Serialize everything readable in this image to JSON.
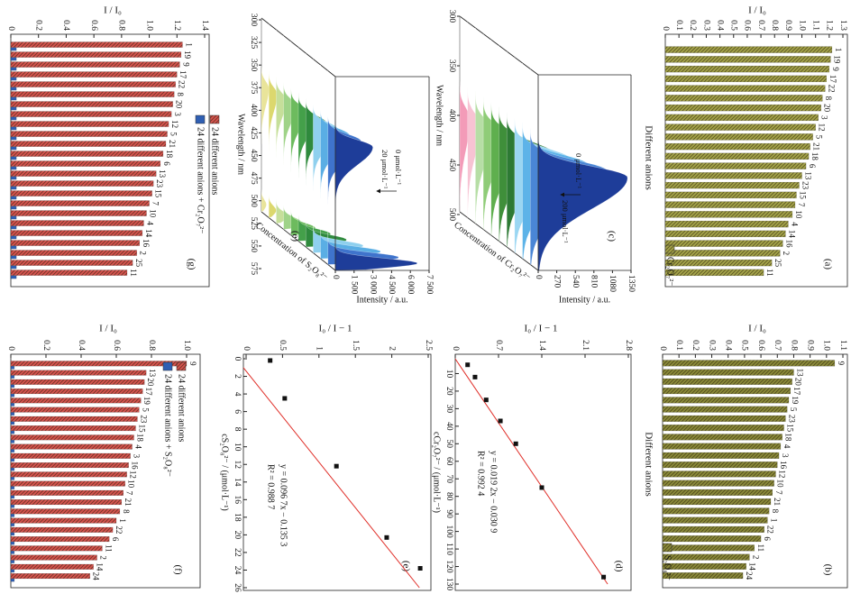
{
  "chart_data": [
    {
      "type": "bar",
      "label": "(a)",
      "ylabel": "I / I₀",
      "xlabel": "Different anions",
      "categories": [
        "1",
        "19",
        "9",
        "17",
        "22",
        "8",
        "20",
        "3",
        "12",
        "5",
        "21",
        "18",
        "6",
        "13",
        "23",
        "15",
        "7",
        "10",
        "4",
        "14",
        "16",
        "2",
        "25",
        "11"
      ],
      "series": [
        {
          "name": "Cr₂O₇²⁻",
          "color": "#a6a64a",
          "hatch": true,
          "values": [
            1.22,
            1.21,
            1.2,
            1.18,
            1.17,
            1.15,
            1.14,
            1.12,
            1.1,
            1.08,
            1.06,
            1.05,
            1.03,
            1.0,
            0.98,
            0.96,
            0.95,
            0.93,
            0.9,
            0.88,
            0.86,
            0.84,
            0.78,
            0.72
          ]
        }
      ],
      "ylim": [
        0,
        1.3
      ],
      "yticks": [
        0,
        0.1,
        0.2,
        0.3,
        0.4,
        0.5,
        0.6,
        0.7,
        0.8,
        0.9,
        {
          "value": 1,
          "label": "1.0"
        },
        1.1,
        1.2,
        1.3
      ]
    },
    {
      "type": "bar",
      "label": "(b)",
      "ylabel": "I / I₀",
      "xlabel": "Different anions",
      "categories": [
        "9",
        "13",
        "20",
        "17",
        "19",
        "5",
        "23",
        "15",
        "18",
        "4",
        "3",
        "16",
        "12",
        "10",
        "7",
        "21",
        "8",
        "1",
        "22",
        "6",
        "11",
        "2",
        "14",
        "24"
      ],
      "series": [
        {
          "name": "S₂O₈²⁻",
          "color": "#8c8c3a",
          "hatch": true,
          "values": [
            1.05,
            0.8,
            0.79,
            0.78,
            0.77,
            0.76,
            0.75,
            0.74,
            0.73,
            0.72,
            0.71,
            0.7,
            0.69,
            0.68,
            0.67,
            0.66,
            0.65,
            0.64,
            0.62,
            0.6,
            0.56,
            0.53,
            0.51,
            0.49
          ]
        }
      ],
      "ylim": [
        0,
        1.1
      ],
      "yticks": [
        0,
        0.1,
        0.2,
        0.3,
        0.4,
        0.5,
        0.6,
        0.7,
        0.8,
        0.9,
        {
          "value": 1,
          "label": "1.0"
        },
        1.1
      ]
    },
    {
      "type": "waterfall",
      "label": "(c)",
      "ylabel": "Wavelength / nm",
      "xlabel": "Intensity / a.u.",
      "zlabel": "Concentration of Cr₂O₇²⁻",
      "annotations": [
        "0 μmol·L⁻¹",
        "200 μmol·L⁻¹"
      ],
      "ylim": [
        300,
        500
      ],
      "yticks": [
        300,
        350,
        400,
        450,
        500
      ],
      "xlim": [
        0,
        1350
      ],
      "xticks": [
        0,
        270,
        540,
        810,
        1080,
        1350
      ]
    },
    {
      "type": "scatter",
      "label": "(d)",
      "ylabel": "I₀ / I − 1",
      "xlabel": "cCr₂O₇²⁻ / (μmol·L⁻¹)",
      "equation": "y = 0.019 2x − 0.030 9",
      "r2": "R² = 0.992 4",
      "x": [
        5,
        12,
        25,
        37,
        50,
        75,
        126
      ],
      "values": [
        0.2,
        0.32,
        0.5,
        0.73,
        0.98,
        1.4,
        2.4
      ],
      "color": "#111111",
      "line_color": "#e0302a",
      "xlim": [
        0,
        130
      ],
      "xticks": [
        10,
        20,
        30,
        40,
        50,
        60,
        70,
        80,
        90,
        100,
        110,
        120,
        130
      ],
      "ylim": [
        0,
        2.8
      ],
      "yticks": [
        0,
        0.7,
        1.4,
        2.1,
        2.8
      ]
    },
    {
      "type": "waterfall",
      "label": "(e)",
      "ylabel": "Wavelength / nm",
      "xlabel": "Intensity / a.u.",
      "zlabel": "Concentration of S₂O₈²⁻",
      "annotations": [
        "0 μmol·L⁻¹",
        "20 μmol·L⁻¹"
      ],
      "ylim": [
        300,
        575
      ],
      "yticks": [
        300,
        325,
        350,
        375,
        400,
        425,
        450,
        475,
        500,
        525,
        550,
        575
      ],
      "xlim": [
        0,
        7500
      ],
      "xticks": [
        0,
        {
          "value": 1500,
          "label": "1 500"
        },
        {
          "value": 3000,
          "label": "3 000"
        },
        {
          "value": 4500,
          "label": "4 500"
        },
        {
          "value": 6000,
          "label": "6 000"
        },
        {
          "value": 7500,
          "label": "7 500"
        }
      ]
    },
    {
      "type": "scatter",
      "label": "(e)",
      "ylabel": "I₀ / I − 1",
      "xlabel": "cS₂O₈²⁻ / (μmol·L⁻¹)",
      "equation": "y = 0.096 7x − 0.135 3",
      "r2": "R² = 0.988 7",
      "x": [
        0.2,
        4.5,
        12.2,
        20.3,
        23.8
      ],
      "values": [
        0.33,
        0.53,
        1.24,
        1.93,
        2.39
      ],
      "color": "#111111",
      "line_color": "#e0302a",
      "xlim": [
        0,
        26
      ],
      "xticks": [
        0,
        2,
        4,
        6,
        8,
        10,
        12,
        14,
        16,
        18,
        20,
        22,
        24,
        26
      ],
      "ylim": [
        0,
        2.5
      ],
      "yticks": [
        0,
        0.5,
        1,
        1.5,
        2,
        2.5
      ]
    },
    {
      "type": "bar",
      "label": "(f)",
      "ylabel": "I / I₀",
      "categories": [
        "9",
        "13",
        "20",
        "17",
        "19",
        "5",
        "23",
        "15",
        "18",
        "4",
        "3",
        "16",
        "12",
        "10",
        "7",
        "21",
        "8",
        "1",
        "22",
        "6",
        "11",
        "2",
        "14",
        "24"
      ],
      "series": [
        {
          "name": "24 different anions",
          "color": "#d9544f",
          "hatch": true,
          "values": [
            1.0,
            0.77,
            0.76,
            0.75,
            0.74,
            0.73,
            0.72,
            0.71,
            0.7,
            0.69,
            0.68,
            0.67,
            0.66,
            0.65,
            0.64,
            0.63,
            0.62,
            0.6,
            0.58,
            0.56,
            0.52,
            0.49,
            0.47,
            0.45
          ]
        },
        {
          "name": "24 different anions + S₂O₈²⁻",
          "color": "#2f5fb3",
          "hatch": false,
          "values": [
            0.02,
            0.02,
            0.02,
            0.02,
            0.02,
            0.02,
            0.02,
            0.02,
            0.02,
            0.02,
            0.02,
            0.02,
            0.02,
            0.02,
            0.02,
            0.02,
            0.02,
            0.02,
            0.02,
            0.02,
            0.02,
            0.02,
            0.02,
            0.02
          ]
        }
      ],
      "ylim": [
        0,
        1.0
      ],
      "yticks": [
        0,
        0.2,
        0.4,
        0.6,
        0.8,
        {
          "value": 1,
          "label": "1.0"
        }
      ]
    },
    {
      "type": "bar",
      "label": "(g)",
      "ylabel": "I / I₀",
      "categories": [
        "1",
        "19",
        "9",
        "17",
        "22",
        "8",
        "20",
        "3",
        "12",
        "5",
        "21",
        "18",
        "6",
        "13",
        "23",
        "15",
        "7",
        "10",
        "4",
        "14",
        "16",
        "2",
        "25",
        "11"
      ],
      "series": [
        {
          "name": "24 different anions",
          "color": "#d9544f",
          "hatch": true,
          "values": [
            1.24,
            1.23,
            1.22,
            1.2,
            1.19,
            1.18,
            1.17,
            1.16,
            1.14,
            1.13,
            1.12,
            1.1,
            1.08,
            1.05,
            1.03,
            1.02,
            1.0,
            0.98,
            0.96,
            0.95,
            0.93,
            0.91,
            0.88,
            0.84
          ]
        },
        {
          "name": "24 different anions + Cr₂O₇²⁻",
          "color": "#2f5fb3",
          "hatch": false,
          "values": [
            0.04,
            0.04,
            0.04,
            0.04,
            0.04,
            0.04,
            0.04,
            0.04,
            0.04,
            0.04,
            0.04,
            0.04,
            0.04,
            0.04,
            0.04,
            0.04,
            0.04,
            0.04,
            0.04,
            0.04,
            0.04,
            0.04,
            0.04,
            0.04
          ]
        }
      ],
      "ylim": [
        0,
        1.4
      ],
      "yticks": [
        0,
        0.2,
        0.4,
        0.6,
        0.8,
        {
          "value": 1,
          "label": "1.0"
        },
        1.2,
        1.4
      ]
    }
  ]
}
